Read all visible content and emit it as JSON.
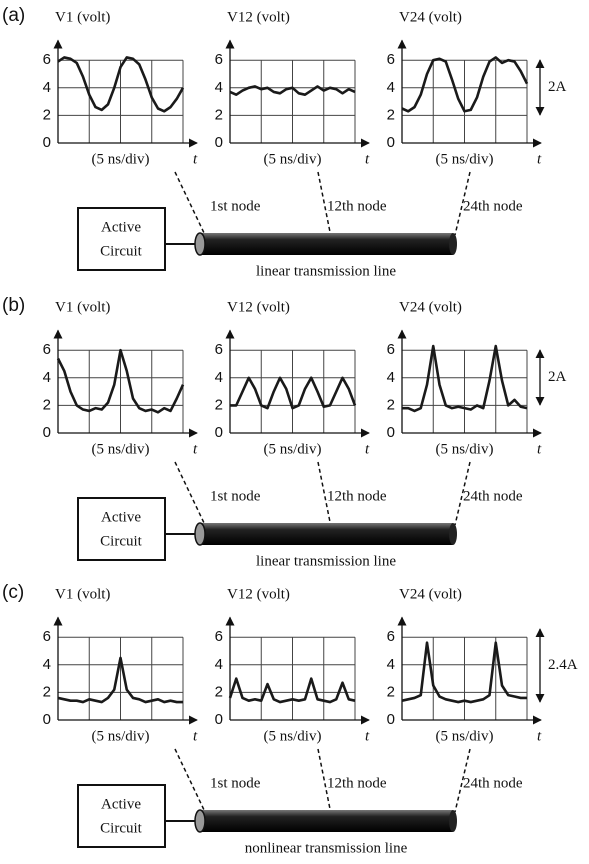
{
  "chart_data": [
    {
      "type": "line",
      "ylabel": "V1 (volt)",
      "xlabel": "(5 ns/div)",
      "xunit": "t",
      "x": [
        0,
        0.2,
        0.4,
        0.6,
        0.8,
        1,
        1.2,
        1.4,
        1.6,
        1.8,
        2,
        2.2,
        2.4,
        2.6,
        2.8,
        3,
        3.2,
        3.4,
        3.6,
        3.8,
        4
      ],
      "series": [
        {
          "color": "#1a1a1a",
          "values": [
            5.9,
            6.2,
            6.1,
            5.8,
            4.8,
            3.5,
            2.6,
            2.4,
            2.8,
            4.0,
            5.5,
            6.2,
            6.1,
            5.7,
            4.6,
            3.3,
            2.5,
            2.3,
            2.6,
            3.2,
            4.0
          ]
        }
      ],
      "xlim": [
        0,
        4
      ],
      "ylim": [
        0,
        7
      ],
      "yticks": [
        0,
        2,
        4,
        6
      ],
      "xticks": [
        1,
        2,
        3,
        4
      ],
      "grid": true
    },
    {
      "type": "line",
      "ylabel": "V12 (volt)",
      "xlabel": "(5 ns/div)",
      "xunit": "t",
      "x": [
        0,
        0.2,
        0.4,
        0.6,
        0.8,
        1,
        1.2,
        1.4,
        1.6,
        1.8,
        2,
        2.2,
        2.4,
        2.6,
        2.8,
        3,
        3.2,
        3.4,
        3.6,
        3.8,
        4
      ],
      "series": [
        {
          "color": "#1a1a1a",
          "values": [
            3.7,
            3.5,
            3.8,
            4.0,
            4.1,
            3.9,
            4.0,
            3.7,
            3.6,
            3.9,
            4.0,
            3.6,
            3.5,
            3.8,
            4.1,
            3.8,
            4.0,
            3.9,
            3.6,
            3.9,
            3.7
          ]
        }
      ],
      "xlim": [
        0,
        4
      ],
      "ylim": [
        0,
        7
      ],
      "yticks": [
        0,
        2,
        4,
        6
      ],
      "xticks": [
        1,
        2,
        3,
        4
      ],
      "grid": true
    },
    {
      "type": "line",
      "ylabel": "V24 (volt)",
      "xlabel": "(5 ns/div)",
      "xunit": "t",
      "x": [
        0,
        0.2,
        0.4,
        0.6,
        0.8,
        1,
        1.2,
        1.4,
        1.6,
        1.8,
        2,
        2.2,
        2.4,
        2.6,
        2.8,
        3,
        3.2,
        3.4,
        3.6,
        3.8,
        4
      ],
      "series": [
        {
          "color": "#1a1a1a",
          "values": [
            2.5,
            2.3,
            2.6,
            3.5,
            5.0,
            6.0,
            6.1,
            5.9,
            4.6,
            3.2,
            2.3,
            2.4,
            3.3,
            4.8,
            5.9,
            6.2,
            5.8,
            6.0,
            5.9,
            5.2,
            4.3
          ]
        }
      ],
      "xlim": [
        0,
        4
      ],
      "ylim": [
        0,
        7
      ],
      "yticks": [
        0,
        2,
        4,
        6
      ],
      "xticks": [
        1,
        2,
        3,
        4
      ],
      "grid": true
    },
    {
      "type": "line",
      "ylabel": "V1 (volt)",
      "xlabel": "(5 ns/div)",
      "xunit": "t",
      "x": [
        0,
        0.2,
        0.4,
        0.6,
        0.8,
        1,
        1.2,
        1.4,
        1.6,
        1.8,
        2,
        2.2,
        2.4,
        2.6,
        2.8,
        3,
        3.2,
        3.4,
        3.6,
        3.8,
        4
      ],
      "series": [
        {
          "color": "#1a1a1a",
          "values": [
            5.4,
            4.5,
            3.0,
            2.0,
            1.7,
            1.6,
            1.8,
            1.7,
            2.2,
            3.5,
            6.0,
            4.5,
            2.5,
            1.8,
            1.6,
            1.7,
            1.5,
            1.8,
            1.6,
            2.5,
            3.5
          ]
        }
      ],
      "xlim": [
        0,
        4
      ],
      "ylim": [
        0,
        7
      ],
      "yticks": [
        0,
        2,
        4,
        6
      ],
      "xticks": [
        1,
        2,
        3,
        4
      ],
      "grid": true
    },
    {
      "type": "line",
      "ylabel": "V12 (volt)",
      "xlabel": "(5 ns/div)",
      "xunit": "t",
      "x": [
        0,
        0.2,
        0.4,
        0.6,
        0.8,
        1,
        1.2,
        1.4,
        1.6,
        1.8,
        2,
        2.2,
        2.4,
        2.6,
        2.8,
        3,
        3.2,
        3.4,
        3.6,
        3.8,
        4
      ],
      "series": [
        {
          "color": "#1a1a1a",
          "values": [
            2.0,
            2.0,
            3.0,
            4.0,
            3.2,
            2.0,
            1.8,
            3.0,
            4.0,
            3.2,
            1.8,
            2.0,
            3.2,
            4.0,
            3.0,
            1.9,
            2.0,
            3.0,
            4.0,
            3.2,
            2.0
          ]
        }
      ],
      "xlim": [
        0,
        4
      ],
      "ylim": [
        0,
        7
      ],
      "yticks": [
        0,
        2,
        4,
        6
      ],
      "xticks": [
        1,
        2,
        3,
        4
      ],
      "grid": true
    },
    {
      "type": "line",
      "ylabel": "V24 (volt)",
      "xlabel": "(5 ns/div)",
      "xunit": "t",
      "x": [
        0,
        0.2,
        0.4,
        0.6,
        0.8,
        1,
        1.2,
        1.4,
        1.6,
        1.8,
        2,
        2.2,
        2.4,
        2.6,
        2.8,
        3,
        3.2,
        3.4,
        3.6,
        3.8,
        4
      ],
      "series": [
        {
          "color": "#1a1a1a",
          "values": [
            1.8,
            1.8,
            1.6,
            1.8,
            3.5,
            6.3,
            3.5,
            2.0,
            1.8,
            1.9,
            1.8,
            1.7,
            2.0,
            1.8,
            3.8,
            6.3,
            3.8,
            2.0,
            2.4,
            1.9,
            1.8
          ]
        }
      ],
      "xlim": [
        0,
        4
      ],
      "ylim": [
        0,
        7
      ],
      "yticks": [
        0,
        2,
        4,
        6
      ],
      "xticks": [
        1,
        2,
        3,
        4
      ],
      "grid": true
    },
    {
      "type": "line",
      "ylabel": "V1 (volt)",
      "xlabel": "(5 ns/div)",
      "xunit": "t",
      "x": [
        0,
        0.2,
        0.4,
        0.6,
        0.8,
        1,
        1.2,
        1.4,
        1.6,
        1.8,
        2,
        2.2,
        2.4,
        2.6,
        2.8,
        3,
        3.2,
        3.4,
        3.6,
        3.8,
        4
      ],
      "series": [
        {
          "color": "#1a1a1a",
          "values": [
            1.6,
            1.5,
            1.4,
            1.4,
            1.3,
            1.5,
            1.4,
            1.3,
            1.6,
            2.2,
            4.5,
            2.2,
            1.6,
            1.5,
            1.3,
            1.4,
            1.5,
            1.3,
            1.4,
            1.3,
            1.3
          ]
        }
      ],
      "xlim": [
        0,
        4
      ],
      "ylim": [
        0,
        7
      ],
      "yticks": [
        0,
        2,
        4,
        6
      ],
      "xticks": [
        1,
        2,
        3,
        4
      ],
      "grid": true
    },
    {
      "type": "line",
      "ylabel": "V12 (volt)",
      "xlabel": "(5 ns/div)",
      "xunit": "t",
      "x": [
        0,
        0.2,
        0.4,
        0.6,
        0.8,
        1,
        1.2,
        1.4,
        1.6,
        1.8,
        2,
        2.2,
        2.4,
        2.6,
        2.8,
        3,
        3.2,
        3.4,
        3.6,
        3.8,
        4
      ],
      "series": [
        {
          "color": "#1a1a1a",
          "values": [
            1.6,
            3.0,
            1.6,
            1.4,
            1.5,
            1.4,
            2.6,
            1.5,
            1.3,
            1.4,
            1.5,
            1.4,
            1.5,
            3.0,
            1.5,
            1.4,
            1.3,
            1.5,
            2.7,
            1.5,
            1.4
          ]
        }
      ],
      "xlim": [
        0,
        4
      ],
      "ylim": [
        0,
        7
      ],
      "yticks": [
        0,
        2,
        4,
        6
      ],
      "xticks": [
        1,
        2,
        3,
        4
      ],
      "grid": true
    },
    {
      "type": "line",
      "ylabel": "V24 (volt)",
      "xlabel": "(5 ns/div)",
      "xunit": "t",
      "x": [
        0,
        0.2,
        0.4,
        0.6,
        0.8,
        1,
        1.2,
        1.4,
        1.6,
        1.8,
        2,
        2.2,
        2.4,
        2.6,
        2.8,
        3,
        3.2,
        3.4,
        3.6,
        3.8,
        4
      ],
      "series": [
        {
          "color": "#1a1a1a",
          "values": [
            1.4,
            1.5,
            1.6,
            1.8,
            5.6,
            2.5,
            1.7,
            1.5,
            1.4,
            1.3,
            1.4,
            1.3,
            1.4,
            1.5,
            1.8,
            5.6,
            2.5,
            1.8,
            1.7,
            1.6,
            1.6
          ]
        }
      ],
      "xlim": [
        0,
        4
      ],
      "ylim": [
        0,
        7
      ],
      "yticks": [
        0,
        2,
        4,
        6
      ],
      "xticks": [
        1,
        2,
        3,
        4
      ],
      "grid": true
    }
  ],
  "panels": [
    {
      "label": "(a)",
      "nodes": [
        "1st node",
        "12th node",
        "24th node"
      ],
      "circuit": [
        "Active",
        "Circuit"
      ],
      "line_label": "linear transmission line",
      "amplitude": "2A"
    },
    {
      "label": "(b)",
      "nodes": [
        "1st node",
        "12th node",
        "24th node"
      ],
      "circuit": [
        "Active",
        "Circuit"
      ],
      "line_label": "linear transmission line",
      "amplitude": "2A"
    },
    {
      "label": "(c)",
      "nodes": [
        "1st node",
        "12th node",
        "24th node"
      ],
      "circuit": [
        "Active",
        "Circuit"
      ],
      "line_label": "nonlinear transmission line",
      "amplitude": "2.4A"
    }
  ]
}
